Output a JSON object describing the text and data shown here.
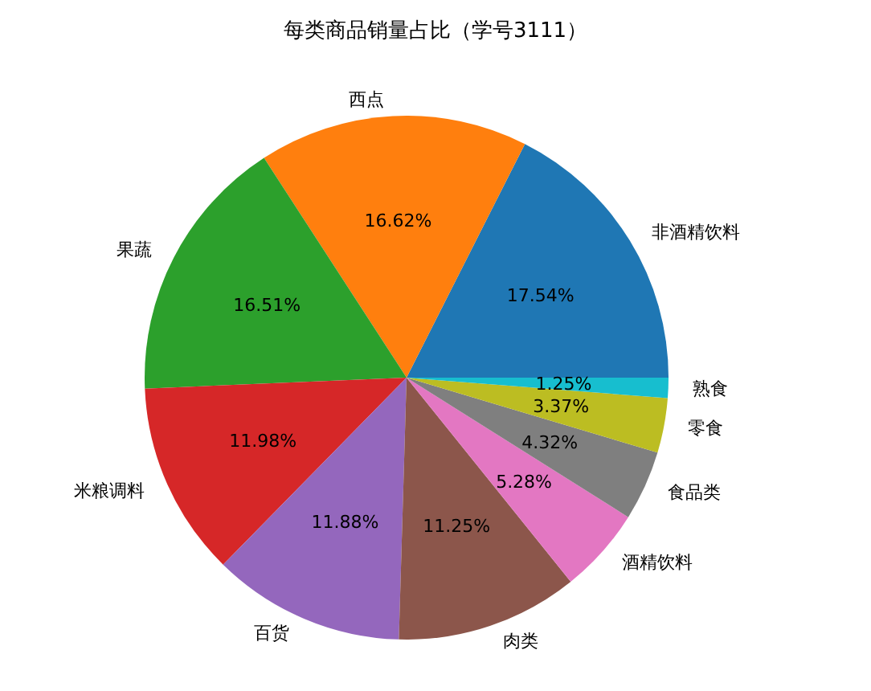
{
  "chart_data": {
    "type": "pie",
    "title": "每类商品销量占比（学号3111）",
    "categories": [
      "非酒精饮料",
      "西点",
      "果蔬",
      "米粮调料",
      "百货",
      "肉类",
      "酒精饮料",
      "食品类",
      "零食",
      "熟食"
    ],
    "values": [
      17.54,
      16.62,
      16.51,
      11.98,
      11.88,
      11.25,
      5.28,
      4.32,
      3.37,
      1.25
    ],
    "value_labels": [
      "17.54%",
      "16.62%",
      "16.51%",
      "11.98%",
      "11.88%",
      "11.25%",
      "5.28%",
      "4.32%",
      "3.37%",
      "1.25%"
    ],
    "colors": [
      "#1f77b4",
      "#ff7f0e",
      "#2ca02c",
      "#d62728",
      "#9467bd",
      "#8c564b",
      "#e377c2",
      "#7f7f7f",
      "#bcbd22",
      "#17becf"
    ],
    "legend": false
  }
}
